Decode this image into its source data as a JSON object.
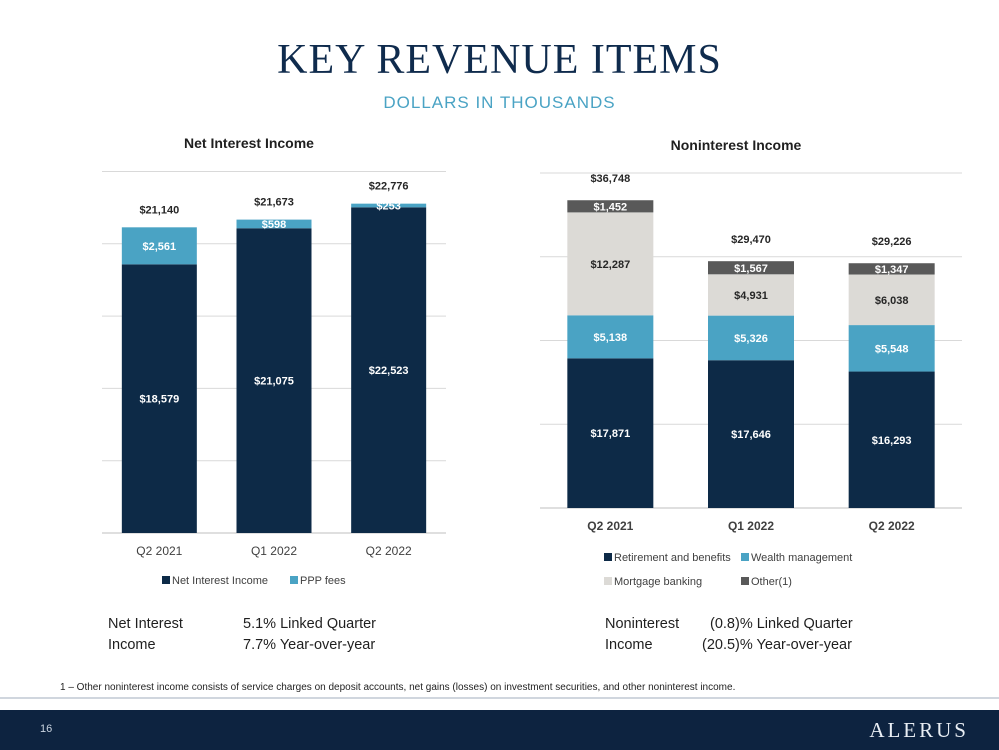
{
  "page": {
    "title": "KEY REVENUE ITEMS",
    "subtitle": "DOLLARS IN THOUSANDS",
    "footnote": "1 – Other noninterest income consists of service charges on deposit accounts, net gains (losses) on investment securities, and other noninterest income.",
    "page_number": "16",
    "logo": "ALERUS"
  },
  "summaries": {
    "left": {
      "label_line1": "Net Interest",
      "label_line2": "Income",
      "value_line1": "5.1% Linked Quarter",
      "value_line2": "7.7% Year-over-year"
    },
    "right": {
      "label_line1": "Noninterest",
      "label_line2": "Income",
      "value_line1": "(0.8)% Linked Quarter",
      "value_line2": "(20.5)% Year-over-year"
    }
  },
  "colors": {
    "navy": "#0d2a47",
    "teal": "#4aa3c4",
    "light_gray": "#dcdad6",
    "dark_gray": "#595959",
    "title": "#0f2b4d"
  },
  "chart_data": [
    {
      "type": "bar",
      "stacked": true,
      "title": "Net Interest Income",
      "categories": [
        "Q2 2021",
        "Q1 2022",
        "Q2 2022"
      ],
      "series": [
        {
          "name": "Net Interest Income",
          "values": [
            18579,
            21075,
            22523
          ],
          "labels": [
            "$18,579",
            "$21,075",
            "$22,523"
          ],
          "color": "#0d2a47"
        },
        {
          "name": "PPP fees",
          "values": [
            2561,
            598,
            253
          ],
          "labels": [
            "$2,561",
            "$598",
            "$253"
          ],
          "color": "#4aa3c4"
        }
      ],
      "totals": [
        "$21,140",
        "$21,673",
        "$22,776"
      ],
      "ylim": [
        0,
        25000
      ],
      "grid": true,
      "legend": "bottom"
    },
    {
      "type": "bar",
      "stacked": true,
      "title": "Noninterest Income",
      "categories": [
        "Q2 2021",
        "Q1 2022",
        "Q2 2022"
      ],
      "series": [
        {
          "name": "Retirement and benefits",
          "values": [
            17871,
            17646,
            16293
          ],
          "labels": [
            "$17,871",
            "$17,646",
            "$16,293"
          ],
          "color": "#0d2a47"
        },
        {
          "name": "Wealth management",
          "values": [
            5138,
            5326,
            5548
          ],
          "labels": [
            "$5,138",
            "$5,326",
            "$5,548"
          ],
          "color": "#4aa3c4"
        },
        {
          "name": "Mortgage banking",
          "values": [
            12287,
            4931,
            6038
          ],
          "labels": [
            "$12,287",
            "$4,931",
            "$6,038"
          ],
          "color": "#dcdad6"
        },
        {
          "name": "Other(1)",
          "values": [
            1452,
            1567,
            1347
          ],
          "labels": [
            "$1,452",
            "$1,567",
            "$1,347"
          ],
          "color": "#595959"
        }
      ],
      "totals": [
        "$36,748",
        "$29,470",
        "$29,226"
      ],
      "ylim": [
        0,
        40000
      ],
      "grid": true,
      "legend": "bottom"
    }
  ]
}
